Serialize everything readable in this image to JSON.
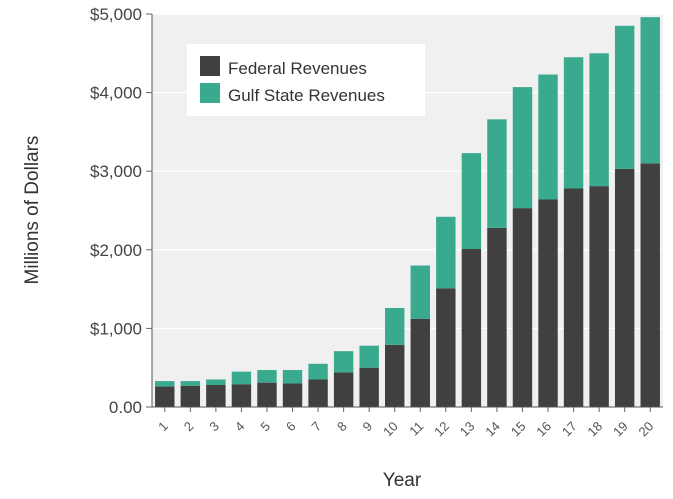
{
  "chart_data": {
    "type": "bar",
    "stacked": true,
    "title": "",
    "xlabel": "Year",
    "ylabel": "Millions of Dollars",
    "ylim": [
      0,
      5000
    ],
    "yticks": [
      0,
      1000,
      2000,
      3000,
      4000,
      5000
    ],
    "ytick_labels": [
      "0.00",
      "$1,000",
      "$2,000",
      "$3,000",
      "$4,000",
      "$5,000"
    ],
    "categories": [
      "1",
      "2",
      "3",
      "4",
      "5",
      "6",
      "7",
      "8",
      "9",
      "10",
      "11",
      "12",
      "13",
      "14",
      "15",
      "16",
      "17",
      "18",
      "19",
      "20"
    ],
    "series": [
      {
        "name": "Federal Revenues",
        "color": "#404040",
        "values": [
          260,
          270,
          280,
          290,
          310,
          300,
          350,
          440,
          500,
          790,
          1120,
          1510,
          2010,
          2280,
          2530,
          2640,
          2780,
          2810,
          3030,
          3100
        ]
      },
      {
        "name": "Gulf State Revenues",
        "color": "#3aaa8f",
        "values": [
          70,
          60,
          70,
          160,
          160,
          170,
          200,
          270,
          280,
          470,
          680,
          910,
          1220,
          1380,
          1540,
          1590,
          1670,
          1690,
          1820,
          1860
        ]
      }
    ],
    "grid": true,
    "legend_position": "top-left"
  }
}
